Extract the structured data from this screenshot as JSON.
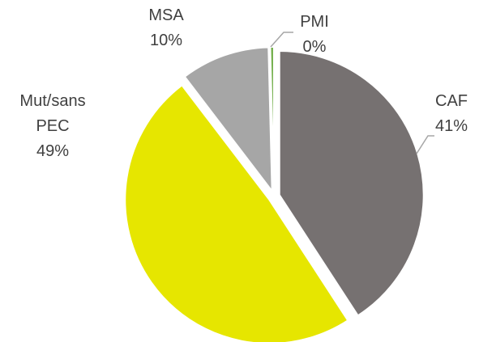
{
  "chart_data": {
    "type": "pie",
    "categories": [
      "CAF",
      "Mut/sans PEC",
      "MSA",
      "PMI"
    ],
    "values": [
      41,
      49,
      10,
      0.4
    ],
    "value_labels": [
      "41%",
      "49%",
      "10%",
      "0%"
    ],
    "colors": [
      "#767171",
      "#e6e600",
      "#a6a6a6",
      "#70ad47"
    ]
  }
}
